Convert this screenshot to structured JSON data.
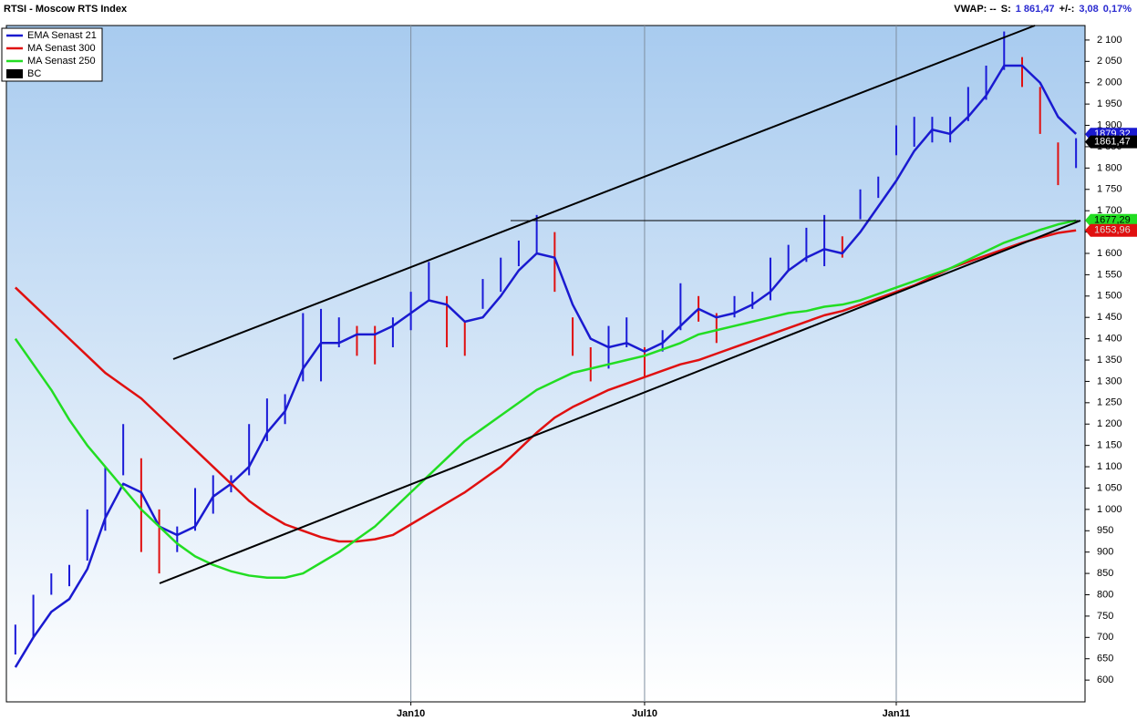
{
  "chart_data": {
    "type": "stock",
    "title": "RTSI - Moscow RTS Index",
    "status": [
      {
        "text": "VWAP: --",
        "color": "#000000"
      },
      {
        "text": "S:",
        "color": "#000000"
      },
      {
        "text": "1 861,47",
        "color": "#2a2ad0"
      },
      {
        "text": "+/-:",
        "color": "#000000"
      },
      {
        "text": "3,08",
        "color": "#2a2ad0"
      },
      {
        "text": "0,17%",
        "color": "#2a2ad0"
      }
    ],
    "categories": [
      null,
      null,
      null,
      null,
      null,
      null,
      null,
      null,
      null,
      null,
      null,
      null,
      null,
      null,
      null,
      null,
      null,
      null,
      null,
      null,
      null,
      null,
      "Jan10",
      null,
      null,
      null,
      null,
      null,
      null,
      null,
      null,
      null,
      null,
      null,
      null,
      "Jul10",
      null,
      null,
      null,
      null,
      null,
      null,
      null,
      null,
      null,
      null,
      null,
      null,
      null,
      "Jan11",
      null,
      null,
      null,
      null,
      null,
      null,
      null,
      null,
      null,
      null
    ],
    "ylim": [
      549,
      2134
    ],
    "yticks": [
      600,
      650,
      700,
      750,
      800,
      850,
      900,
      950,
      {
        "value": 1000,
        "label": "1 000"
      },
      {
        "value": 1050,
        "label": "1 050"
      },
      {
        "value": 1100,
        "label": "1 100"
      },
      {
        "value": 1150,
        "label": "1 150"
      },
      {
        "value": 1200,
        "label": "1 200"
      },
      {
        "value": 1250,
        "label": "1 250"
      },
      {
        "value": 1300,
        "label": "1 300"
      },
      {
        "value": 1350,
        "label": "1 350"
      },
      {
        "value": 1400,
        "label": "1 400"
      },
      {
        "value": 1450,
        "label": "1 450"
      },
      {
        "value": 1500,
        "label": "1 500"
      },
      {
        "value": 1550,
        "label": "1 550"
      },
      {
        "value": 1600,
        "label": "1 600"
      },
      {
        "value": 1650,
        "label": "1 650"
      },
      {
        "value": 1700,
        "label": "1 700"
      },
      {
        "value": 1750,
        "label": "1 750"
      },
      {
        "value": 1800,
        "label": "1 800"
      },
      {
        "value": 1850,
        "label": "1 850"
      },
      {
        "value": 1900,
        "label": "1 900"
      },
      {
        "value": 1950,
        "label": "1 950"
      },
      {
        "value": 2000,
        "label": "2 000"
      },
      {
        "value": 2050,
        "label": "2 050"
      },
      {
        "value": 2100,
        "label": "2 100"
      }
    ],
    "bars": {
      "name": "BC",
      "up_color": "#1a1ad8",
      "down_color": "#e01010",
      "high": [
        730,
        800,
        850,
        870,
        1000,
        1100,
        1200,
        1120,
        1000,
        960,
        1050,
        1080,
        1080,
        1200,
        1260,
        1270,
        1460,
        1470,
        1450,
        1430,
        1430,
        1450,
        1510,
        1580,
        1500,
        1440,
        1540,
        1590,
        1630,
        1690,
        1650,
        1450,
        1380,
        1430,
        1450,
        1380,
        1420,
        1530,
        1500,
        1460,
        1500,
        1510,
        1590,
        1620,
        1660,
        1690,
        1640,
        1750,
        1780,
        1900,
        1920,
        1920,
        1920,
        1990,
        2040,
        2120,
        2060,
        1990,
        1860,
        1870
      ],
      "low": [
        660,
        700,
        800,
        820,
        880,
        950,
        1080,
        900,
        850,
        900,
        950,
        990,
        1040,
        1080,
        1160,
        1200,
        1300,
        1300,
        1380,
        1360,
        1340,
        1380,
        1420,
        1490,
        1380,
        1360,
        1470,
        1510,
        1570,
        1600,
        1510,
        1360,
        1300,
        1330,
        1380,
        1310,
        1370,
        1420,
        1440,
        1390,
        1450,
        1470,
        1490,
        1560,
        1580,
        1570,
        1590,
        1680,
        1730,
        1830,
        1850,
        1860,
        1860,
        1910,
        1960,
        2030,
        1990,
        1880,
        1760,
        1800
      ]
    },
    "series": [
      {
        "name": "EMA  Senast 21",
        "color": "#1a1ad0",
        "values": [
          630,
          700,
          760,
          790,
          860,
          980,
          1060,
          1040,
          960,
          940,
          960,
          1030,
          1060,
          1100,
          1180,
          1230,
          1330,
          1390,
          1390,
          1410,
          1410,
          1430,
          1460,
          1490,
          1480,
          1440,
          1450,
          1500,
          1560,
          1600,
          1590,
          1480,
          1400,
          1380,
          1390,
          1370,
          1390,
          1430,
          1470,
          1450,
          1460,
          1480,
          1510,
          1560,
          1590,
          1610,
          1600,
          1650,
          1710,
          1770,
          1840,
          1890,
          1880,
          1920,
          1970,
          2040,
          2040,
          2000,
          1920,
          1880
        ]
      },
      {
        "name": "MA  Senast 300",
        "color": "#e01010",
        "values": [
          1520,
          1480,
          1440,
          1400,
          1360,
          1320,
          1290,
          1260,
          1220,
          1180,
          1140,
          1100,
          1060,
          1020,
          990,
          965,
          950,
          935,
          925,
          925,
          930,
          940,
          965,
          990,
          1015,
          1040,
          1070,
          1100,
          1140,
          1180,
          1215,
          1240,
          1260,
          1280,
          1295,
          1310,
          1325,
          1340,
          1350,
          1365,
          1380,
          1395,
          1410,
          1425,
          1440,
          1455,
          1465,
          1480,
          1495,
          1510,
          1525,
          1545,
          1565,
          1580,
          1595,
          1610,
          1625,
          1637,
          1648,
          1654
        ]
      },
      {
        "name": "MA  Senast 250",
        "color": "#22dd22",
        "values": [
          1400,
          1340,
          1280,
          1210,
          1150,
          1100,
          1050,
          1000,
          960,
          920,
          890,
          870,
          855,
          845,
          840,
          840,
          850,
          875,
          900,
          930,
          960,
          1000,
          1040,
          1080,
          1120,
          1160,
          1190,
          1220,
          1250,
          1280,
          1300,
          1320,
          1330,
          1340,
          1350,
          1360,
          1375,
          1390,
          1410,
          1420,
          1430,
          1440,
          1450,
          1460,
          1465,
          1475,
          1480,
          1490,
          1505,
          1520,
          1535,
          1550,
          1565,
          1585,
          1605,
          1625,
          1640,
          1655,
          1668,
          1677
        ]
      }
    ],
    "last_values": [
      {
        "value": 1879.32,
        "label": "1879,32",
        "color": "#1a1ad0",
        "text_color": "#ffffff"
      },
      {
        "value": 1861.47,
        "label": "1861,47",
        "color": "#000000",
        "text_color": "#ffffff"
      },
      {
        "value": 1677.29,
        "label": "1677,29",
        "color": "#22dd22",
        "text_color": "#000000"
      },
      {
        "value": 1653.96,
        "label": "1653,96",
        "color": "#e01010",
        "text_color": "#dddddd"
      }
    ],
    "grid": true
  }
}
